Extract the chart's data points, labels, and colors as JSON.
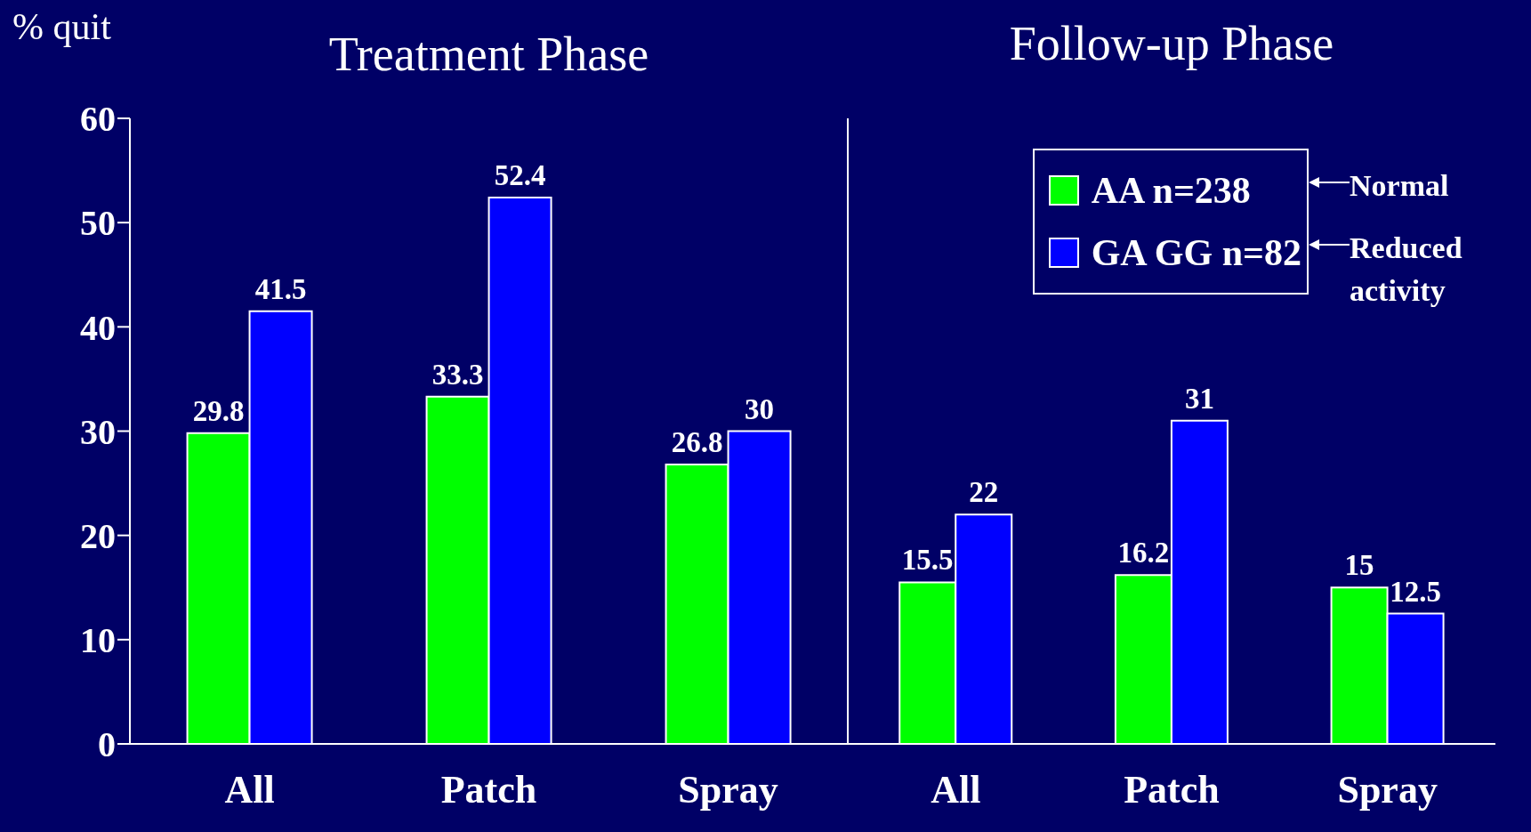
{
  "chart_data": [
    {
      "type": "bar",
      "title": "Treatment Phase",
      "ylabel": "% quit",
      "categories": [
        "All",
        "Patch",
        "Spray"
      ],
      "series": [
        {
          "color": "#00ff00",
          "values": [
            29.8,
            33.3,
            26.8
          ]
        },
        {
          "color": "#0000ff",
          "values": [
            41.5,
            52.4,
            30
          ]
        }
      ],
      "ylim": [
        0,
        60
      ],
      "yticks": [
        0,
        10,
        20,
        30,
        40,
        50,
        60
      ],
      "data_labels": true
    },
    {
      "type": "bar",
      "title": "Follow-up Phase",
      "categories": [
        "All",
        "Patch",
        "Spray"
      ],
      "series": [
        {
          "name": "AA n=238",
          "color": "#00ff00",
          "values": [
            15.5,
            16.2,
            15
          ]
        },
        {
          "name": "GA GG n=82",
          "color": "#0000ff",
          "values": [
            22,
            31,
            12.5
          ]
        }
      ],
      "ylim": [
        0,
        60
      ],
      "tick_labels": "x",
      "data_labels": true,
      "legend": "top right",
      "annotations": [
        "Normal",
        "Reduced activity"
      ]
    }
  ]
}
